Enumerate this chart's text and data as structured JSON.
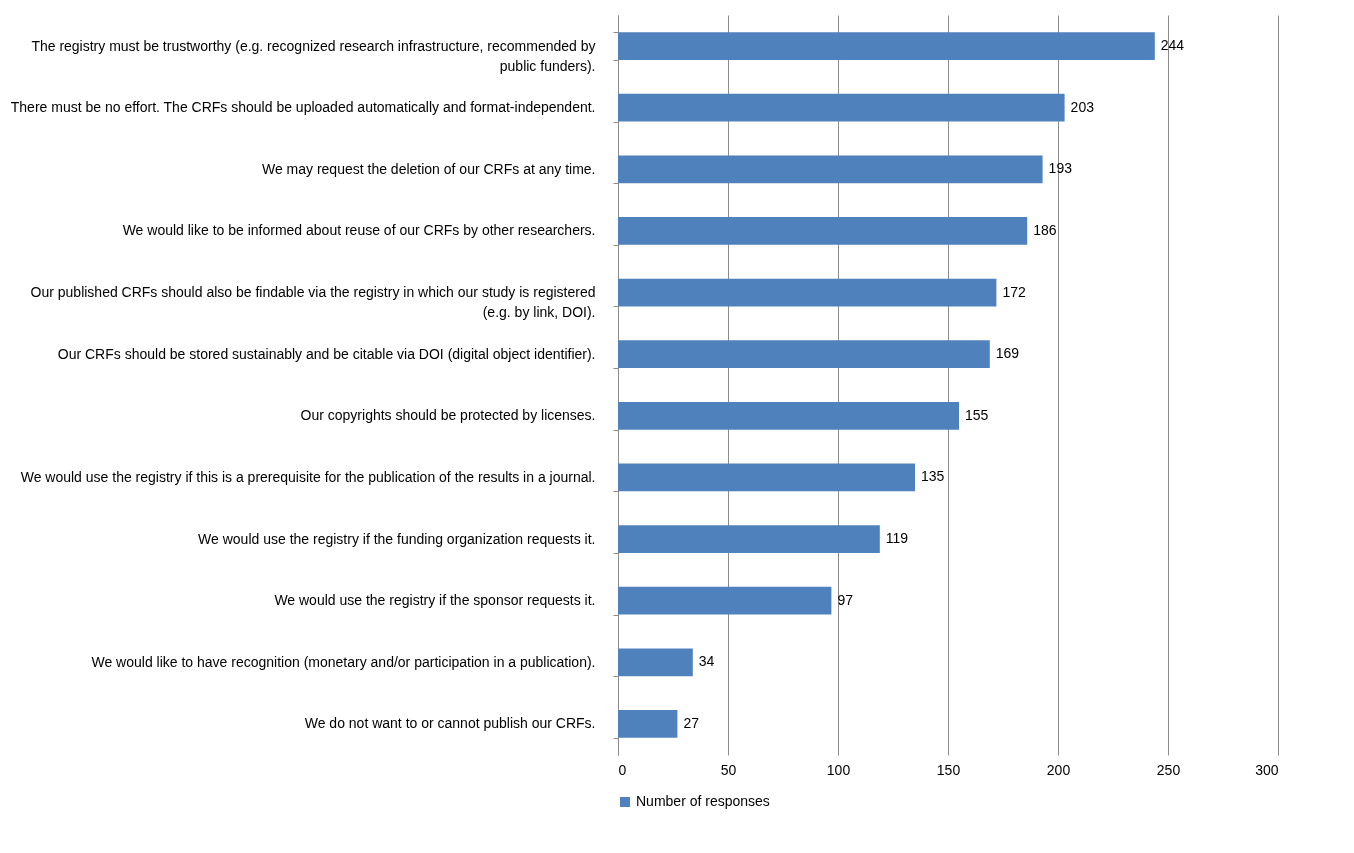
{
  "chart_data": {
    "type": "bar",
    "orientation": "horizontal",
    "categories": [
      "The registry must be trustworthy (e.g. recognized research infrastructure, recommended by public funders).",
      "There must be no effort. The CRFs should be uploaded automatically and format-independent.",
      "We may request the deletion of our CRFs at any time.",
      "We would like to be informed about reuse of our CRFs by other researchers.",
      "Our published CRFs should also be findable via the registry in which our study is registered (e.g. by link, DOI).",
      "Our CRFs should be stored sustainably and be citable via DOI (digital object identifier).",
      "Our copyrights should be protected by licenses.",
      "We would use the registry if this is a prerequisite for the publication of the results in a journal.",
      "We would use the registry if the funding organization requests it.",
      "We would use the registry if the sponsor requests it.",
      "We would like to have recognition (monetary and/or participation in a publication).",
      "We do not want to or cannot publish our CRFs."
    ],
    "series": [
      {
        "name": "Number of responses",
        "color": "#4f81bd",
        "values": [
          244,
          203,
          193,
          186,
          172,
          169,
          155,
          135,
          119,
          97,
          34,
          27
        ]
      }
    ],
    "xlim": [
      0,
      300
    ],
    "xticks": [
      0,
      50,
      100,
      150,
      200,
      250,
      300
    ],
    "grid": "x",
    "legend": "bottom",
    "data_labels": true
  }
}
